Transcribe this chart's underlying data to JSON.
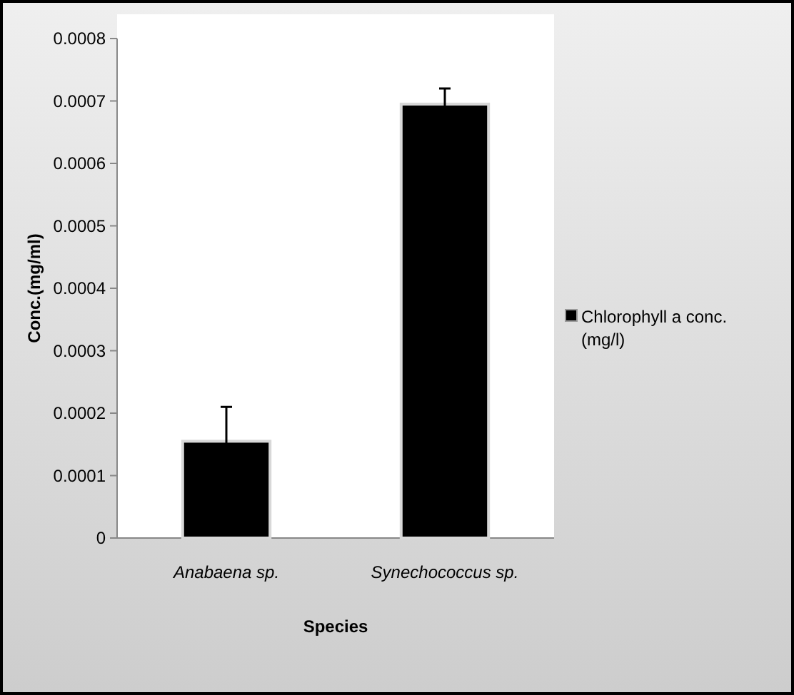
{
  "chart_data": {
    "type": "bar",
    "xlabel": "Species",
    "ylabel": "Conc.(mg/ml)",
    "categories": [
      "Anabaena sp.",
      "Synechococcus sp."
    ],
    "series": [
      {
        "name": "Chlorophyll a conc. (mg/l)",
        "color": "#000000",
        "values": [
          0.000155,
          0.000695
        ],
        "errors": [
          5.5e-05,
          2.5e-05
        ]
      }
    ],
    "ylim": [
      0,
      0.0008
    ],
    "yticks": [
      {
        "value": 0,
        "label": "0"
      },
      {
        "value": 0.0001,
        "label": "0.0001"
      },
      {
        "value": 0.0002,
        "label": "0.0002"
      },
      {
        "value": 0.0003,
        "label": "0.0003"
      },
      {
        "value": 0.0004,
        "label": "0.0004"
      },
      {
        "value": 0.0005,
        "label": "0.0005"
      },
      {
        "value": 0.0006,
        "label": "0.0006"
      },
      {
        "value": 0.0007,
        "label": "0.0007"
      },
      {
        "value": 0.0008,
        "label": "0.0008"
      }
    ],
    "grid": false,
    "legend": "right"
  }
}
